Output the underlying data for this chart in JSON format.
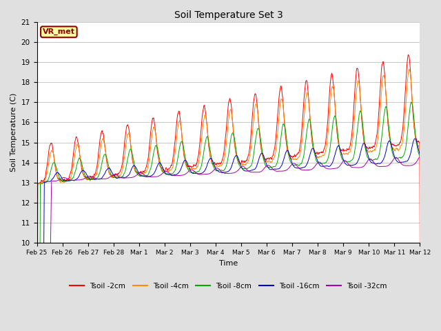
{
  "title": "Soil Temperature Set 3",
  "xlabel": "Time",
  "ylabel": "Soil Temperature (C)",
  "ylim": [
    10.0,
    21.0
  ],
  "yticks": [
    10.0,
    11.0,
    12.0,
    13.0,
    14.0,
    15.0,
    16.0,
    17.0,
    18.0,
    19.0,
    20.0,
    21.0
  ],
  "line_colors": [
    "#FF0000",
    "#FF8C00",
    "#00AA00",
    "#0000CC",
    "#AA00AA"
  ],
  "line_labels": [
    "Tsoil -2cm",
    "Tsoil -4cm",
    "Tsoil -8cm",
    "Tsoil -16cm",
    "Tsoil -32cm"
  ],
  "vr_met_label": "VR_met",
  "vr_met_box_color": "#FFFFA0",
  "vr_met_border_color": "#8B0000",
  "vr_met_text_color": "#8B0000",
  "background_color": "#E0E0E0",
  "plot_bg_color": "#FFFFFF",
  "grid_color": "#C8C8C8",
  "tick_labels": [
    "Feb 25",
    "Feb 26",
    "Feb 27",
    "Feb 28",
    "Mar 1",
    "Mar 2",
    "Mar 3",
    "Mar 4",
    "Mar 5",
    "Mar 6",
    "Mar 7",
    "Mar 8",
    "Mar 9",
    "Mar 10",
    "Mar 11",
    "Mar 12"
  ],
  "figsize": [
    6.4,
    4.8
  ],
  "dpi": 100
}
